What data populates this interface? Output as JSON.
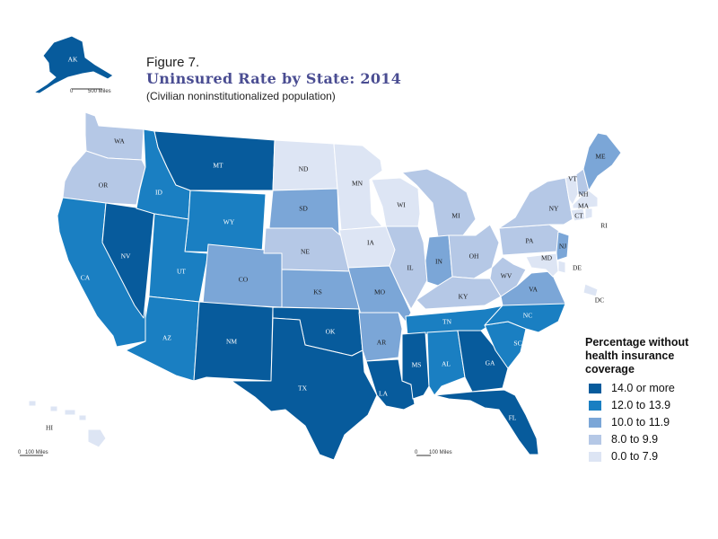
{
  "figure_label": "Figure 7.",
  "title": "Uninsured Rate by State: 2014",
  "subtitle": "(Civilian noninstitutionalized population)",
  "legend": {
    "title": "Percentage without health insurance coverage",
    "items": [
      {
        "label": "14.0 or more",
        "color": "#075b9c"
      },
      {
        "label": "12.0 to 13.9",
        "color": "#1a7fc2"
      },
      {
        "label": "10.0 to 11.9",
        "color": "#7ba6d7"
      },
      {
        "label": "8.0 to 9.9",
        "color": "#b5c8e6"
      },
      {
        "label": "0.0 to 7.9",
        "color": "#dde5f4"
      }
    ]
  },
  "scales": {
    "alaska": "500 Miles",
    "hawaii": "100 Miles",
    "main": "100 Miles",
    "zero": "0"
  },
  "states": [
    {
      "abbr": "AK",
      "class": 0
    },
    {
      "abbr": "HI",
      "class": 4
    },
    {
      "abbr": "WA",
      "class": 3
    },
    {
      "abbr": "OR",
      "class": 3
    },
    {
      "abbr": "CA",
      "class": 1
    },
    {
      "abbr": "NV",
      "class": 0
    },
    {
      "abbr": "ID",
      "class": 1
    },
    {
      "abbr": "MT",
      "class": 0
    },
    {
      "abbr": "WY",
      "class": 1
    },
    {
      "abbr": "UT",
      "class": 1
    },
    {
      "abbr": "AZ",
      "class": 1
    },
    {
      "abbr": "CO",
      "class": 2
    },
    {
      "abbr": "NM",
      "class": 0
    },
    {
      "abbr": "ND",
      "class": 4
    },
    {
      "abbr": "SD",
      "class": 2
    },
    {
      "abbr": "NE",
      "class": 3
    },
    {
      "abbr": "KS",
      "class": 2
    },
    {
      "abbr": "OK",
      "class": 0
    },
    {
      "abbr": "TX",
      "class": 0
    },
    {
      "abbr": "MN",
      "class": 4
    },
    {
      "abbr": "IA",
      "class": 4
    },
    {
      "abbr": "MO",
      "class": 2
    },
    {
      "abbr": "AR",
      "class": 2
    },
    {
      "abbr": "LA",
      "class": 0
    },
    {
      "abbr": "WI",
      "class": 4
    },
    {
      "abbr": "IL",
      "class": 3
    },
    {
      "abbr": "MI",
      "class": 3
    },
    {
      "abbr": "IN",
      "class": 2
    },
    {
      "abbr": "OH",
      "class": 3
    },
    {
      "abbr": "KY",
      "class": 3
    },
    {
      "abbr": "TN",
      "class": 1
    },
    {
      "abbr": "MS",
      "class": 0
    },
    {
      "abbr": "AL",
      "class": 1
    },
    {
      "abbr": "GA",
      "class": 0
    },
    {
      "abbr": "FL",
      "class": 0
    },
    {
      "abbr": "SC",
      "class": 1
    },
    {
      "abbr": "NC",
      "class": 1
    },
    {
      "abbr": "VA",
      "class": 2
    },
    {
      "abbr": "WV",
      "class": 3
    },
    {
      "abbr": "PA",
      "class": 3
    },
    {
      "abbr": "NY",
      "class": 3
    },
    {
      "abbr": "VT",
      "class": 4
    },
    {
      "abbr": "NH",
      "class": 3
    },
    {
      "abbr": "ME",
      "class": 2
    },
    {
      "abbr": "MA",
      "class": 4
    },
    {
      "abbr": "CT",
      "class": 4
    },
    {
      "abbr": "RI",
      "class": 4
    },
    {
      "abbr": "NJ",
      "class": 2
    },
    {
      "abbr": "DE",
      "class": 4
    },
    {
      "abbr": "MD",
      "class": 4
    },
    {
      "abbr": "DC",
      "class": 4
    }
  ]
}
